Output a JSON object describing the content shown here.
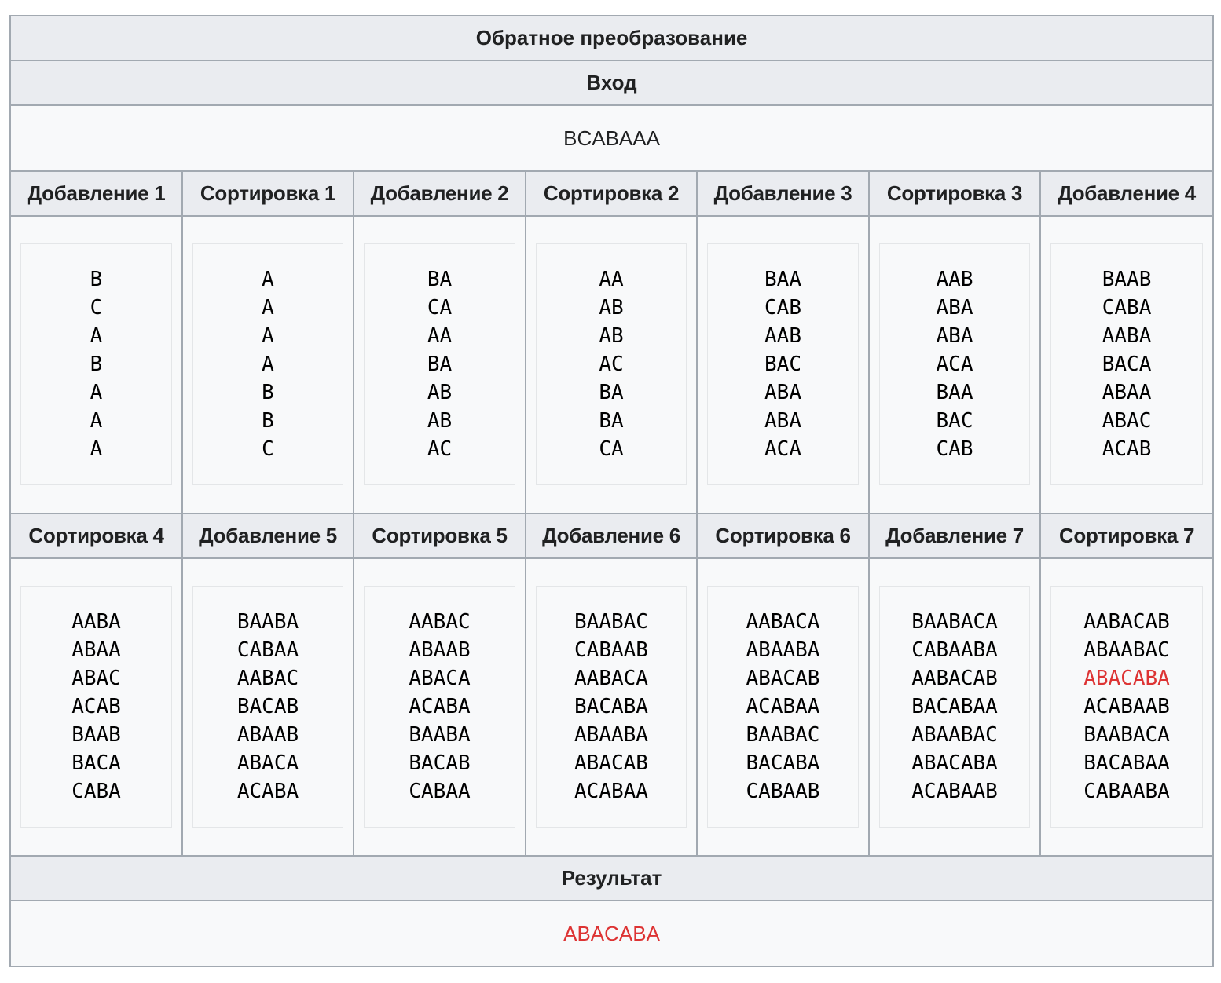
{
  "title": "Обратное преобразование",
  "input_label": "Вход",
  "input_value": "BCABAAA",
  "result_label": "Результат",
  "result_value": "ABACABA",
  "highlight_color": "#d33",
  "rows": [
    {
      "headers": [
        "Добавление 1",
        "Сортировка 1",
        "Добавление 2",
        "Сортировка 2",
        "Добавление 3",
        "Сортировка 3",
        "Добавление 4"
      ],
      "columns": [
        [
          "B",
          "C",
          "A",
          "B",
          "A",
          "A",
          "A"
        ],
        [
          "A",
          "A",
          "A",
          "A",
          "B",
          "B",
          "C"
        ],
        [
          "BA",
          "CA",
          "AA",
          "BA",
          "AB",
          "AB",
          "AC"
        ],
        [
          "AA",
          "AB",
          "AB",
          "AC",
          "BA",
          "BA",
          "CA"
        ],
        [
          "BAA",
          "CAB",
          "AAB",
          "BAC",
          "ABA",
          "ABA",
          "ACA"
        ],
        [
          "AAB",
          "ABA",
          "ABA",
          "ACA",
          "BAA",
          "BAC",
          "CAB"
        ],
        [
          "BAAB",
          "CABA",
          "AABA",
          "BACA",
          "ABAA",
          "ABAC",
          "ACAB"
        ]
      ]
    },
    {
      "headers": [
        "Сортировка 4",
        "Добавление 5",
        "Сортировка 5",
        "Добавление 6",
        "Сортировка 6",
        "Добавление 7",
        "Сортировка 7"
      ],
      "columns": [
        [
          "AABA",
          "ABAA",
          "ABAC",
          "ACAB",
          "BAAB",
          "BACA",
          "CABA"
        ],
        [
          "BAABA",
          "CABAA",
          "AABAC",
          "BACAB",
          "ABAAB",
          "ABACA",
          "ACABA"
        ],
        [
          "AABAC",
          "ABAAB",
          "ABACA",
          "ACABA",
          "BAABA",
          "BACAB",
          "CABAA"
        ],
        [
          "BAABAC",
          "CABAAB",
          "AABACA",
          "BACABA",
          "ABAABA",
          "ABACAB",
          "ACABAA"
        ],
        [
          "AABACA",
          "ABAABA",
          "ABACAB",
          "ACABAA",
          "BAABAC",
          "BACABA",
          "CABAAB"
        ],
        [
          "BAABACA",
          "CABAABA",
          "AABACAB",
          "BACABAA",
          "ABAABAC",
          "ABACABA",
          "ACABAAB"
        ],
        [
          "AABACAB",
          "ABAABAC",
          "ABACABA",
          "ACABAAB",
          "BAABACA",
          "BACABAA",
          "CABAABA"
        ]
      ],
      "highlight": {
        "col": 6,
        "line": 2
      }
    }
  ]
}
